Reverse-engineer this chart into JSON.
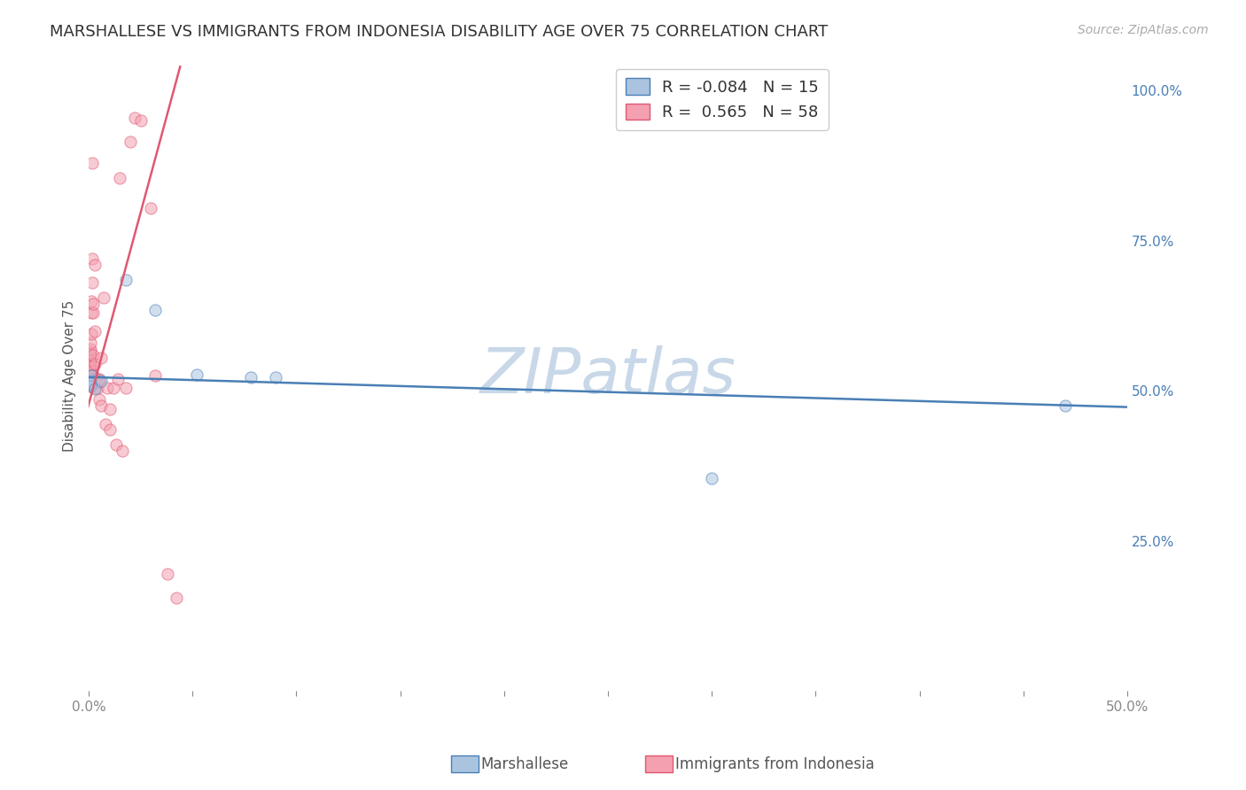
{
  "title": "MARSHALLESE VS IMMIGRANTS FROM INDONESIA DISABILITY AGE OVER 75 CORRELATION CHART",
  "source": "Source: ZipAtlas.com",
  "ylabel": "Disability Age Over 75",
  "legend_blue_R": "-0.084",
  "legend_blue_N": "15",
  "legend_pink_R": "0.565",
  "legend_pink_N": "58",
  "legend_blue_label": "Marshallese",
  "legend_pink_label": "Immigrants from Indonesia",
  "watermark": "ZIPatlas",
  "blue_scatter_x": [
    0.0005,
    0.001,
    0.0008,
    0.0012,
    0.0006,
    0.0009,
    0.018,
    0.032,
    0.052,
    0.078,
    0.003,
    0.006,
    0.09,
    0.3,
    0.47
  ],
  "blue_scatter_y": [
    0.515,
    0.518,
    0.512,
    0.525,
    0.508,
    0.513,
    0.685,
    0.635,
    0.527,
    0.522,
    0.503,
    0.517,
    0.523,
    0.355,
    0.475
  ],
  "pink_scatter_x": [
    0.0002,
    0.0003,
    0.0004,
    0.0005,
    0.0005,
    0.0006,
    0.0007,
    0.0007,
    0.0008,
    0.0008,
    0.0009,
    0.001,
    0.001,
    0.001,
    0.001,
    0.001,
    0.0012,
    0.0013,
    0.0014,
    0.0015,
    0.0016,
    0.0018,
    0.002,
    0.002,
    0.002,
    0.002,
    0.0022,
    0.0025,
    0.003,
    0.003,
    0.003,
    0.003,
    0.003,
    0.004,
    0.004,
    0.005,
    0.005,
    0.005,
    0.006,
    0.006,
    0.007,
    0.008,
    0.009,
    0.01,
    0.01,
    0.012,
    0.013,
    0.014,
    0.015,
    0.016,
    0.018,
    0.02,
    0.022,
    0.025,
    0.03,
    0.032,
    0.038,
    0.042
  ],
  "pink_scatter_y": [
    0.51,
    0.515,
    0.51,
    0.515,
    0.52,
    0.52,
    0.525,
    0.53,
    0.535,
    0.54,
    0.545,
    0.55,
    0.56,
    0.565,
    0.57,
    0.58,
    0.595,
    0.63,
    0.65,
    0.68,
    0.72,
    0.88,
    0.51,
    0.525,
    0.56,
    0.63,
    0.645,
    0.505,
    0.515,
    0.52,
    0.545,
    0.6,
    0.71,
    0.505,
    0.52,
    0.485,
    0.515,
    0.52,
    0.475,
    0.555,
    0.655,
    0.445,
    0.505,
    0.435,
    0.47,
    0.505,
    0.41,
    0.52,
    0.855,
    0.4,
    0.505,
    0.915,
    0.955,
    0.95,
    0.805,
    0.525,
    0.195,
    0.155
  ],
  "blue_line_x": [
    0.0,
    0.5
  ],
  "blue_line_y": [
    0.523,
    0.473
  ],
  "pink_line_x": [
    -0.001,
    0.044
  ],
  "pink_line_y": [
    0.465,
    1.04
  ],
  "xlim": [
    0.0,
    0.5
  ],
  "ylim": [
    0.0,
    1.05
  ],
  "xtick_vals": [
    0.0,
    0.05,
    0.1,
    0.15,
    0.2,
    0.25,
    0.3,
    0.35,
    0.4,
    0.45,
    0.5
  ],
  "ytick_right_vals": [
    0.25,
    0.5,
    0.75,
    1.0
  ],
  "ytick_right_labels": [
    "25.0%",
    "50.0%",
    "75.0%",
    "100.0%"
  ],
  "grid_color": "#dddddd",
  "blue_color": "#aac4e0",
  "pink_color": "#f4a0b0",
  "blue_line_color": "#4a7fb5",
  "pink_line_color": "#e05870",
  "title_fontsize": 13,
  "source_fontsize": 10,
  "axis_tick_fontsize": 11,
  "ylabel_fontsize": 11,
  "watermark_color": "#c8d8e8",
  "watermark_fontsize": 52,
  "scatter_size": 90,
  "scatter_alpha": 0.55,
  "line_width": 1.8
}
